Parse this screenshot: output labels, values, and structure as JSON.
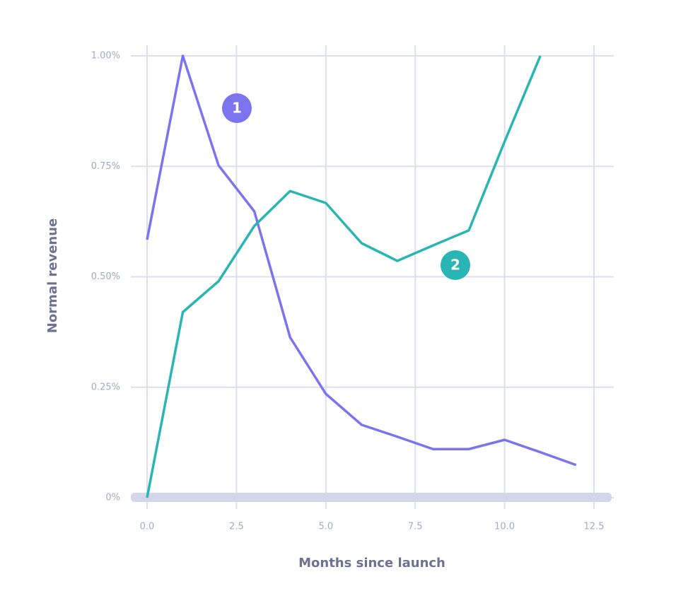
{
  "chart_data": {
    "type": "line",
    "x_label": "Months since launch",
    "y_label": "Normal revenue",
    "x": [
      0,
      1,
      2,
      3,
      4,
      5,
      6,
      7,
      8,
      9,
      10,
      11,
      12
    ],
    "series": [
      {
        "color": "#7b74ee",
        "values": [
          0.584,
          1.0,
          0.752,
          0.648,
          0.363,
          0.235,
          0.165,
          0.138,
          0.11,
          0.11,
          0.131,
          0.103,
          0.074
        ]
      },
      {
        "color": "#2ab5b5",
        "values": [
          0,
          0.42,
          0.49,
          0.615,
          0.694,
          0.667,
          0.576,
          0.536,
          0.571,
          0.605,
          0.806,
          1.0,
          null
        ]
      }
    ],
    "annotations": [
      {
        "text": "1",
        "color": "#7b74ee"
      },
      {
        "text": "2",
        "color": "#2ab5b5"
      }
    ],
    "xlim": [
      0,
      12.5
    ],
    "ylim": [
      0,
      1
    ],
    "xticks": [
      {
        "value": 0,
        "label": "0.0"
      },
      2.5,
      {
        "value": 5,
        "label": "5.0"
      },
      7.5,
      {
        "value": 10,
        "label": "10.0"
      },
      12.5
    ],
    "yticks": [
      {
        "value": 0,
        "label": "0%"
      },
      {
        "value": 0.25,
        "label": "0.25%"
      },
      {
        "value": 0.5,
        "label": "0.50%"
      },
      {
        "value": 0.75,
        "label": "0.75%"
      },
      {
        "value": 1,
        "label": "1.00%"
      }
    ],
    "grid": true
  }
}
